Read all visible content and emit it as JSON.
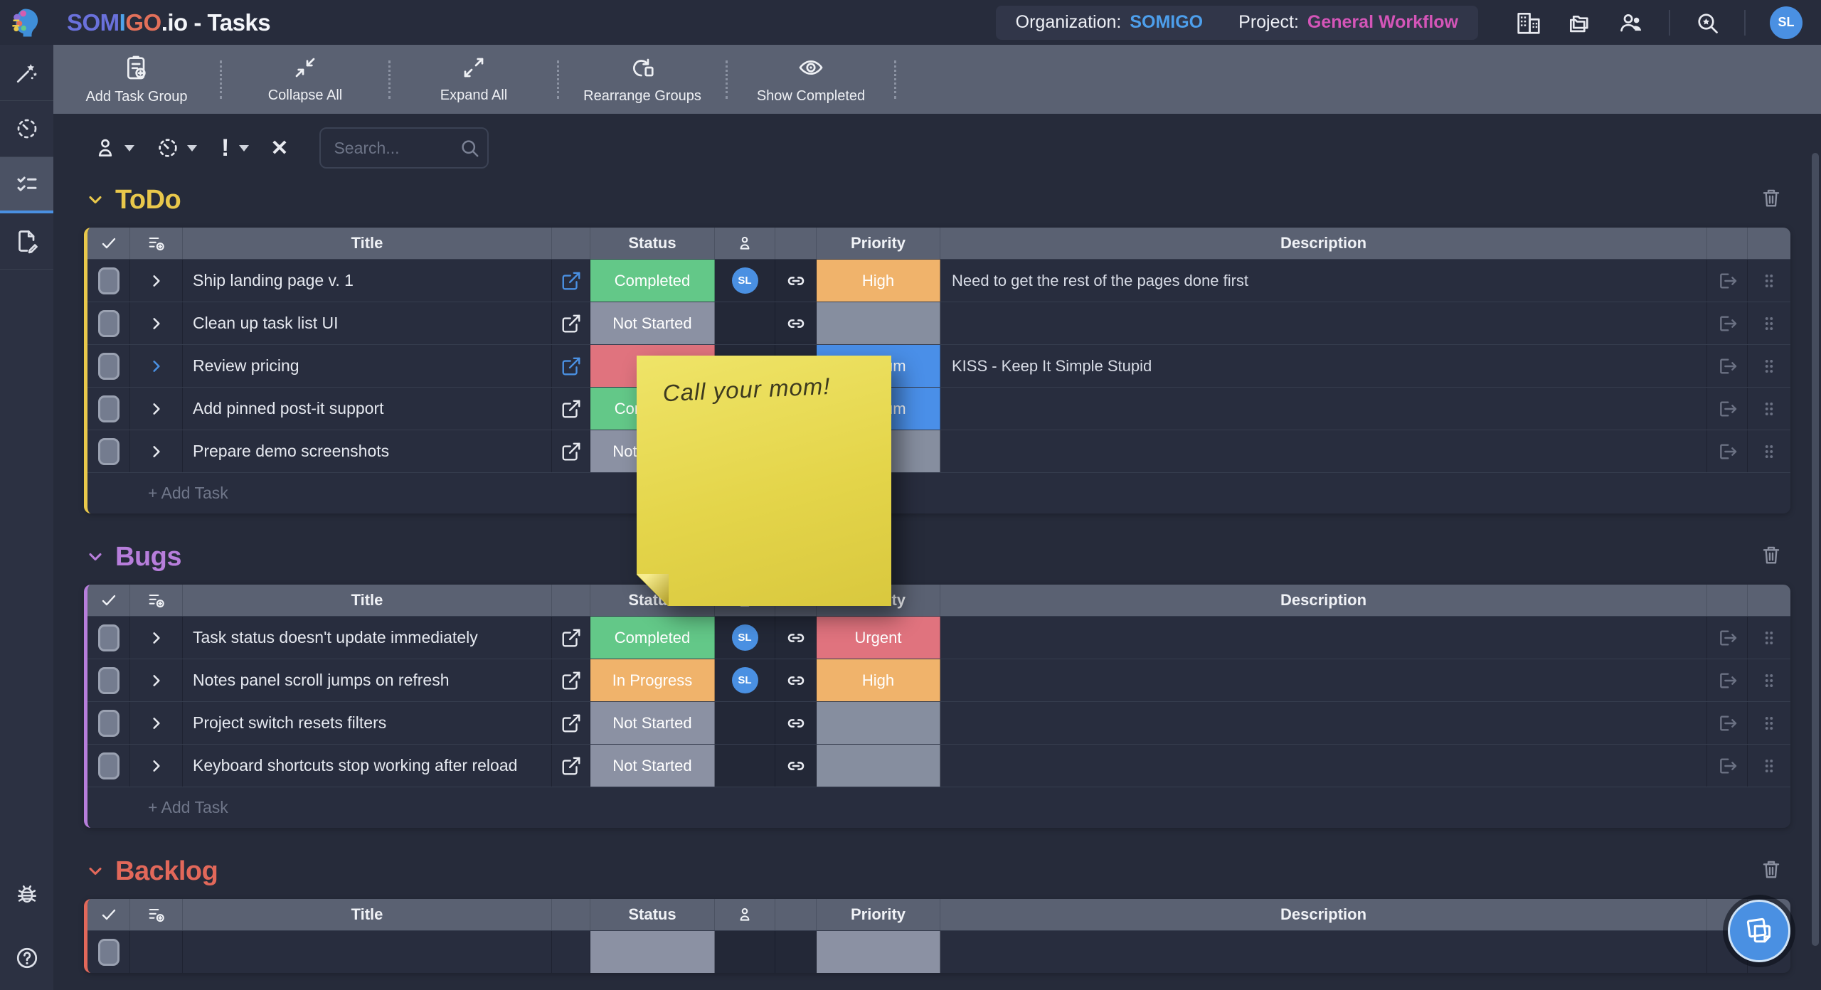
{
  "header": {
    "brand": {
      "seg1": "SOM",
      "seg2": "I",
      "seg3": "GO",
      "seg4": ".io - Tasks"
    },
    "brand_colors": [
      "#6a71dc",
      "#4fa3ea",
      "#e2705a",
      "#f4f6fa"
    ],
    "org_label": "Organization:",
    "org_value": "SOMIGO",
    "org_value_color": "#4d9fec",
    "project_label": "Project:",
    "project_value": "General Workflow",
    "project_value_color": "#d455b8",
    "avatar": "SL",
    "avatar_color": "#4a90e2"
  },
  "toolbar": {
    "buttons": [
      {
        "icon": "clipboard-plus-icon",
        "label": "Add Task Group"
      },
      {
        "icon": "collapse-icon",
        "label": "Collapse All"
      },
      {
        "icon": "expand-icon",
        "label": "Expand All"
      },
      {
        "icon": "rearrange-icon",
        "label": "Rearrange Groups"
      },
      {
        "icon": "eye-icon",
        "label": "Show Completed"
      }
    ]
  },
  "filterbar": {
    "search_placeholder": "Search..."
  },
  "columns": {
    "title": "Title",
    "status": "Status",
    "priority": "Priority",
    "description": "Description"
  },
  "add_task_label": "+ Add Task",
  "groups": [
    {
      "name": "ToDo",
      "accent": "#e9c84b",
      "tasks": [
        {
          "title": "Ship landing page v. 1",
          "status": "Completed",
          "status_color": "#63c888",
          "assignee": "SL",
          "linked": true,
          "priority": "High",
          "priority_color": "#f0b36b",
          "description": "Need to get the rest of the pages done first",
          "open_accent": true,
          "chevron_accent": false
        },
        {
          "title": "Clean up task list UI",
          "status": "Not Started",
          "status_color": "#8b91a3",
          "assignee": null,
          "linked": true,
          "priority": "",
          "priority_color": "#868e9f",
          "description": "",
          "open_accent": false,
          "chevron_accent": false
        },
        {
          "title": "Review pricing",
          "status": "",
          "status_color": "#e0737e",
          "assignee": null,
          "linked": false,
          "priority": "Medium",
          "priority_color": "#4a8fe8",
          "description": "KISS - Keep It Simple Stupid",
          "open_accent": true,
          "chevron_accent": true
        },
        {
          "title": "Add pinned post-it support",
          "status": "Completed",
          "status_color": "#63c888",
          "assignee": null,
          "linked": false,
          "priority": "Medium",
          "priority_color": "#4a8fe8",
          "description": "",
          "open_accent": false,
          "chevron_accent": false
        },
        {
          "title": "Prepare demo screenshots",
          "status": "Not Started",
          "status_color": "#8b91a3",
          "assignee": null,
          "linked": false,
          "priority": "",
          "priority_color": "#868e9f",
          "description": "",
          "open_accent": false,
          "chevron_accent": false
        }
      ]
    },
    {
      "name": "Bugs",
      "accent": "#b77edb",
      "tasks": [
        {
          "title": "Task status doesn't update immediately",
          "status": "Completed",
          "status_color": "#63c888",
          "assignee": "SL",
          "linked": true,
          "priority": "Urgent",
          "priority_color": "#e0737e",
          "description": "",
          "open_accent": false,
          "chevron_accent": false
        },
        {
          "title": "Notes panel scroll jumps on refresh",
          "status": "In Progress",
          "status_color": "#f0b36b",
          "assignee": "SL",
          "linked": true,
          "priority": "High",
          "priority_color": "#f0b36b",
          "description": "",
          "open_accent": false,
          "chevron_accent": false
        },
        {
          "title": "Project switch resets filters",
          "status": "Not Started",
          "status_color": "#8b91a3",
          "assignee": null,
          "linked": true,
          "priority": "",
          "priority_color": "#868e9f",
          "description": "",
          "open_accent": false,
          "chevron_accent": false
        },
        {
          "title": "Keyboard shortcuts stop working after reload",
          "status": "Not Started",
          "status_color": "#8b91a3",
          "assignee": null,
          "linked": true,
          "priority": "",
          "priority_color": "#868e9f",
          "description": "",
          "open_accent": false,
          "chevron_accent": false
        }
      ]
    },
    {
      "name": "Backlog",
      "accent": "#e2685a",
      "partial": true,
      "tasks": [
        {
          "title": "",
          "status": "",
          "status_color": "#8b91a3",
          "assignee": null,
          "linked": false,
          "priority": "",
          "priority_color": "#8b91a3",
          "description": "",
          "minimal": true
        }
      ]
    }
  ],
  "sticky_note": {
    "text": "Call your mom!",
    "color": "#e4d54a"
  },
  "fab": {
    "icon": "sticky-notes-icon",
    "color": "#4a90e2"
  }
}
